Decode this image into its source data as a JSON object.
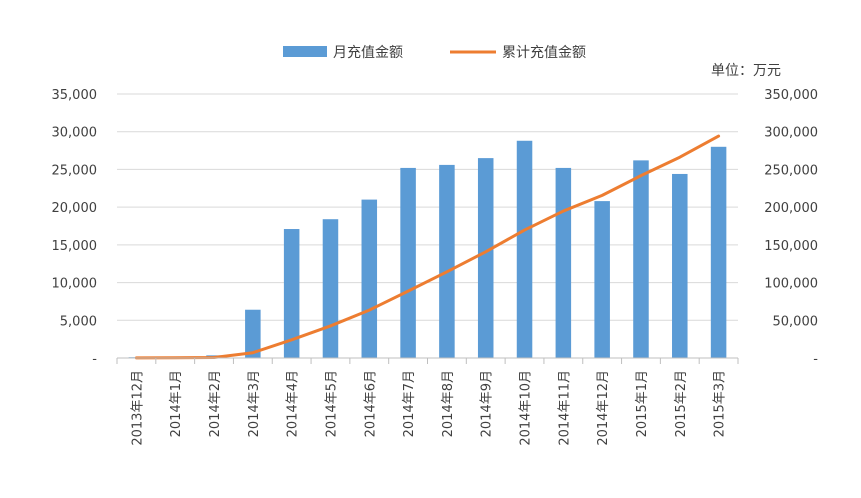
{
  "chart_data": {
    "type": "bar",
    "unit_label": "单位：万元",
    "categories": [
      "2013年12月",
      "2014年1月",
      "2014年2月",
      "2014年3月",
      "2014年4月",
      "2014年5月",
      "2014年6月",
      "2014年7月",
      "2014年8月",
      "2014年9月",
      "2014年10月",
      "2014年11月",
      "2014年12月",
      "2015年1月",
      "2015年2月",
      "2015年3月"
    ],
    "series": [
      {
        "name": "月充值金额",
        "kind": "bar",
        "axis": "left",
        "color": "#5b9bd5",
        "values": [
          100,
          150,
          350,
          6400,
          17100,
          18400,
          21000,
          25200,
          25600,
          26500,
          28800,
          25200,
          20800,
          26200,
          24400,
          28000
        ]
      },
      {
        "name": "累计充值金额",
        "kind": "line",
        "axis": "right",
        "color": "#ed7d31",
        "values": [
          100,
          250,
          600,
          7000,
          24100,
          42500,
          63500,
          88700,
          114300,
          140800,
          169600,
          194800,
          215600,
          241800,
          266200,
          294200
        ]
      }
    ],
    "y_left": {
      "min": 0,
      "max": 35000,
      "step": 5000,
      "ticks": [
        "-",
        "5,000",
        "10,000",
        "15,000",
        "20,000",
        "25,000",
        "30,000",
        "35,000"
      ]
    },
    "y_right": {
      "min": 0,
      "max": 350000,
      "step": 50000,
      "ticks": [
        "-",
        "50,000",
        "100,000",
        "150,000",
        "200,000",
        "250,000",
        "300,000",
        "350,000"
      ]
    },
    "grid": true,
    "legend_position": "top"
  }
}
